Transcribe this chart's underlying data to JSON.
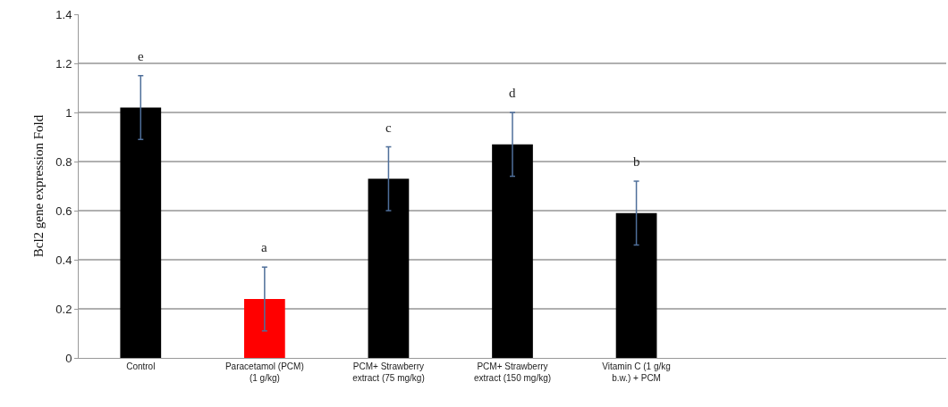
{
  "chart_data": {
    "type": "bar",
    "ylabel": "Bcl2 gene expression Fold",
    "categories": [
      "Control",
      "Paracetamol (PCM) (1 g/kg)",
      "PCM+ Strawberry extract (75 mg/kg)",
      "PCM+ Strawberry extract (150 mg/kg)",
      "Vitamin C (1 g/kg b.w.) + PCM",
      null,
      null
    ],
    "values": [
      1.02,
      0.24,
      0.73,
      0.87,
      0.59,
      null,
      null
    ],
    "colors": [
      "#000000",
      "#ff0000",
      "#000000",
      "#000000",
      "#000000",
      "#000000",
      "#000000"
    ],
    "errors": [
      0.13,
      0.13,
      0.13,
      0.13,
      0.13,
      null,
      null
    ],
    "ylim": [
      0,
      1.4
    ],
    "yticks": [
      0,
      0.2,
      0.4,
      0.6,
      0.8,
      1,
      1.2,
      1.4
    ],
    "grid": "y",
    "annotations": [
      {
        "text": "e",
        "x": "Control",
        "y": 1.15
      },
      {
        "text": "a",
        "x": "Paracetamol (PCM) (1 g/kg)",
        "y": 0.37
      },
      {
        "text": "c",
        "x": "PCM+ Strawberry extract (75 mg/kg)",
        "y": 0.86
      },
      {
        "text": "d",
        "x": "PCM+ Strawberry extract (150 mg/kg)",
        "y": 1.0
      },
      {
        "text": "b",
        "x": "Vitamin C (1 g/kg b.w.) + PCM",
        "y": 0.72
      }
    ]
  }
}
